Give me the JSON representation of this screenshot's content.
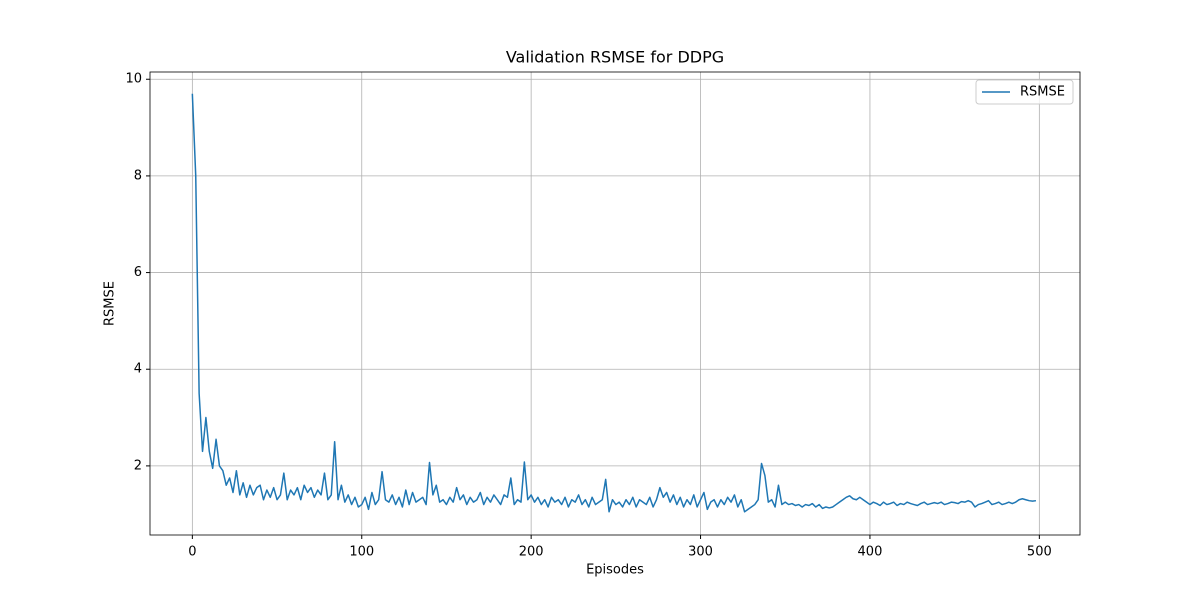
{
  "chart_data": {
    "type": "line",
    "title": "Validation RSMSE for DDPG",
    "x_label": "Episodes",
    "y_label": "RSMSE",
    "x": [
      0,
      2,
      4,
      6,
      8,
      10,
      12,
      14,
      16,
      18,
      20,
      22,
      24,
      26,
      28,
      30,
      32,
      34,
      36,
      38,
      40,
      42,
      44,
      46,
      48,
      50,
      52,
      54,
      56,
      58,
      60,
      62,
      64,
      66,
      68,
      70,
      72,
      74,
      76,
      78,
      80,
      82,
      84,
      86,
      88,
      90,
      92,
      94,
      96,
      98,
      100,
      102,
      104,
      106,
      108,
      110,
      112,
      114,
      116,
      118,
      120,
      122,
      124,
      126,
      128,
      130,
      132,
      134,
      136,
      138,
      140,
      142,
      144,
      146,
      148,
      150,
      152,
      154,
      156,
      158,
      160,
      162,
      164,
      166,
      168,
      170,
      172,
      174,
      176,
      178,
      180,
      182,
      184,
      186,
      188,
      190,
      192,
      194,
      196,
      198,
      200,
      202,
      204,
      206,
      208,
      210,
      212,
      214,
      216,
      218,
      220,
      222,
      224,
      226,
      228,
      230,
      232,
      234,
      236,
      238,
      240,
      242,
      244,
      246,
      248,
      250,
      252,
      254,
      256,
      258,
      260,
      262,
      264,
      266,
      268,
      270,
      272,
      274,
      276,
      278,
      280,
      282,
      284,
      286,
      288,
      290,
      292,
      294,
      296,
      298,
      300,
      302,
      304,
      306,
      308,
      310,
      312,
      314,
      316,
      318,
      320,
      322,
      324,
      326,
      328,
      330,
      332,
      334,
      336,
      338,
      340,
      342,
      344,
      346,
      348,
      350,
      352,
      354,
      356,
      358,
      360,
      362,
      364,
      366,
      368,
      370,
      372,
      374,
      376,
      378,
      380,
      382,
      384,
      386,
      388,
      390,
      392,
      394,
      396,
      398,
      400,
      402,
      404,
      406,
      408,
      410,
      412,
      414,
      416,
      418,
      420,
      422,
      424,
      426,
      428,
      430,
      432,
      434,
      436,
      438,
      440,
      442,
      444,
      446,
      448,
      450,
      452,
      454,
      456,
      458,
      460,
      462,
      464,
      466,
      468,
      470,
      472,
      474,
      476,
      478,
      480,
      482,
      484,
      486,
      488,
      490,
      492,
      494,
      496,
      498
    ],
    "series": [
      {
        "name": "RSMSE",
        "color": "#1f77b4",
        "values": [
          9.7,
          8.0,
          3.5,
          2.3,
          3.0,
          2.3,
          1.95,
          2.55,
          2.0,
          1.9,
          1.6,
          1.75,
          1.45,
          1.9,
          1.4,
          1.65,
          1.35,
          1.6,
          1.4,
          1.55,
          1.6,
          1.3,
          1.5,
          1.35,
          1.55,
          1.3,
          1.4,
          1.85,
          1.3,
          1.5,
          1.4,
          1.55,
          1.3,
          1.6,
          1.45,
          1.55,
          1.35,
          1.5,
          1.4,
          1.85,
          1.3,
          1.4,
          2.5,
          1.3,
          1.6,
          1.25,
          1.4,
          1.2,
          1.35,
          1.15,
          1.2,
          1.35,
          1.1,
          1.45,
          1.2,
          1.3,
          1.88,
          1.3,
          1.25,
          1.4,
          1.2,
          1.35,
          1.15,
          1.5,
          1.2,
          1.45,
          1.25,
          1.3,
          1.35,
          1.2,
          2.07,
          1.4,
          1.6,
          1.25,
          1.3,
          1.2,
          1.35,
          1.25,
          1.55,
          1.3,
          1.4,
          1.2,
          1.35,
          1.25,
          1.3,
          1.45,
          1.2,
          1.35,
          1.25,
          1.4,
          1.3,
          1.2,
          1.4,
          1.35,
          1.75,
          1.2,
          1.3,
          1.25,
          2.08,
          1.3,
          1.4,
          1.25,
          1.35,
          1.2,
          1.3,
          1.15,
          1.35,
          1.25,
          1.3,
          1.2,
          1.35,
          1.15,
          1.3,
          1.25,
          1.4,
          1.2,
          1.3,
          1.15,
          1.35,
          1.2,
          1.25,
          1.3,
          1.72,
          1.05,
          1.3,
          1.2,
          1.25,
          1.15,
          1.3,
          1.2,
          1.35,
          1.15,
          1.3,
          1.25,
          1.2,
          1.35,
          1.15,
          1.3,
          1.55,
          1.35,
          1.45,
          1.25,
          1.4,
          1.2,
          1.35,
          1.15,
          1.3,
          1.2,
          1.4,
          1.15,
          1.3,
          1.45,
          1.1,
          1.25,
          1.3,
          1.15,
          1.3,
          1.2,
          1.35,
          1.25,
          1.4,
          1.15,
          1.3,
          1.05,
          1.1,
          1.15,
          1.2,
          1.3,
          2.05,
          1.8,
          1.25,
          1.3,
          1.15,
          1.6,
          1.2,
          1.25,
          1.2,
          1.22,
          1.18,
          1.2,
          1.15,
          1.2,
          1.18,
          1.22,
          1.15,
          1.2,
          1.12,
          1.15,
          1.13,
          1.15,
          1.2,
          1.25,
          1.3,
          1.35,
          1.38,
          1.32,
          1.3,
          1.35,
          1.3,
          1.25,
          1.2,
          1.25,
          1.22,
          1.18,
          1.25,
          1.2,
          1.22,
          1.25,
          1.18,
          1.22,
          1.2,
          1.25,
          1.22,
          1.2,
          1.18,
          1.22,
          1.25,
          1.2,
          1.22,
          1.24,
          1.22,
          1.25,
          1.2,
          1.22,
          1.25,
          1.24,
          1.22,
          1.26,
          1.25,
          1.28,
          1.25,
          1.15,
          1.2,
          1.22,
          1.25,
          1.28,
          1.2,
          1.22,
          1.25,
          1.2,
          1.22,
          1.25,
          1.22,
          1.25,
          1.3,
          1.32,
          1.3,
          1.28,
          1.27,
          1.28
        ]
      }
    ],
    "xlim": [
      -25,
      524
    ],
    "ylim": [
      0.57,
      10.15
    ],
    "xticks": [
      0,
      100,
      200,
      300,
      400,
      500
    ],
    "yticks": [
      2,
      4,
      6,
      8,
      10
    ],
    "grid": true,
    "legend": "upper right"
  }
}
